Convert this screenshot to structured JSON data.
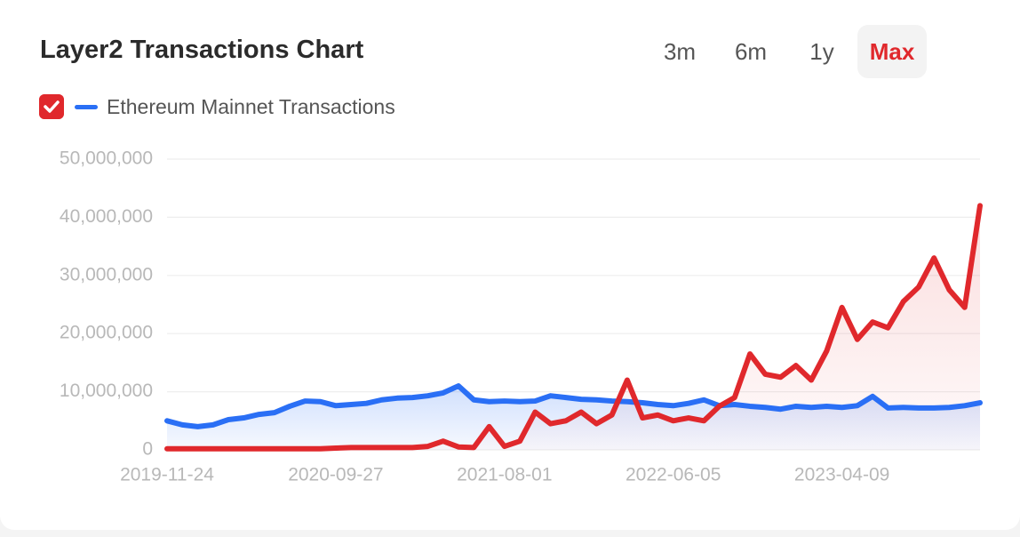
{
  "controls": {
    "ranges": [
      "3m",
      "6m",
      "1y",
      "Max"
    ]
  },
  "chart_data": {
    "type": "line",
    "title": "Layer2 Transactions Chart",
    "x": [
      "2019-11-24",
      "2019-12-22",
      "2020-01-19",
      "2020-02-16",
      "2020-03-15",
      "2020-04-12",
      "2020-05-10",
      "2020-06-07",
      "2020-07-05",
      "2020-08-02",
      "2020-08-30",
      "2020-09-27",
      "2020-10-25",
      "2020-11-22",
      "2020-12-20",
      "2021-01-17",
      "2021-02-14",
      "2021-03-14",
      "2021-04-11",
      "2021-05-09",
      "2021-06-06",
      "2021-07-04",
      "2021-08-01",
      "2021-08-29",
      "2021-09-26",
      "2021-10-24",
      "2021-11-21",
      "2021-12-19",
      "2022-01-16",
      "2022-02-13",
      "2022-03-13",
      "2022-04-10",
      "2022-05-08",
      "2022-06-05",
      "2022-07-03",
      "2022-07-31",
      "2022-08-28",
      "2022-09-25",
      "2022-10-23",
      "2022-11-20",
      "2022-12-18",
      "2023-01-15",
      "2023-02-12",
      "2023-03-12",
      "2023-04-09",
      "2023-05-07",
      "2023-06-04",
      "2023-07-02",
      "2023-07-30",
      "2023-08-27",
      "2023-09-24",
      "2023-10-22",
      "2023-11-19",
      "2023-12-17"
    ],
    "series": [
      {
        "name": "Ethereum Mainnet Transactions",
        "color": "#2a6ff5",
        "values": [
          5000000,
          4300000,
          4000000,
          4300000,
          5200000,
          5500000,
          6100000,
          6400000,
          7500000,
          8400000,
          8300000,
          7600000,
          7800000,
          8000000,
          8600000,
          8900000,
          9000000,
          9300000,
          9800000,
          11000000,
          8600000,
          8300000,
          8400000,
          8300000,
          8400000,
          9300000,
          9000000,
          8700000,
          8600000,
          8400000,
          8300000,
          8100000,
          7800000,
          7600000,
          8000000,
          8600000,
          7600000,
          7800000,
          7500000,
          7300000,
          7000000,
          7500000,
          7300000,
          7500000,
          7300000,
          7600000,
          9200000,
          7200000,
          7300000,
          7200000,
          7200000,
          7300000,
          7600000,
          8100000
        ]
      },
      {
        "color": "#e0282c",
        "values": [
          200000,
          200000,
          200000,
          200000,
          200000,
          200000,
          200000,
          200000,
          200000,
          200000,
          200000,
          300000,
          400000,
          400000,
          400000,
          400000,
          400000,
          600000,
          1500000,
          500000,
          400000,
          4000000,
          600000,
          1500000,
          6500000,
          4500000,
          5000000,
          6500000,
          4500000,
          6000000,
          12000000,
          5500000,
          6000000,
          5000000,
          5500000,
          5000000,
          7500000,
          9000000,
          16500000,
          13000000,
          12500000,
          14500000,
          12000000,
          17000000,
          24500000,
          19000000,
          22000000,
          21000000,
          25500000,
          28000000,
          33000000,
          27500000,
          24500000,
          42000000
        ]
      }
    ],
    "xlim": [
      "2019-11-24",
      "2023-12-17"
    ],
    "xticks": [
      "2019-11-24",
      "2020-09-27",
      "2021-08-01",
      "2022-06-05",
      "2023-04-09"
    ],
    "ylim": [
      0,
      50000000
    ],
    "yticks": [
      0,
      {
        "value": 10000000,
        "label": "10,000,000"
      },
      {
        "value": 20000000,
        "label": "20,000,000"
      },
      {
        "value": 30000000,
        "label": "30,000,000"
      },
      {
        "value": 40000000,
        "label": "40,000,000"
      },
      {
        "value": 50000000,
        "label": "50,000,000"
      }
    ],
    "grid": true,
    "fill_area": true
  }
}
